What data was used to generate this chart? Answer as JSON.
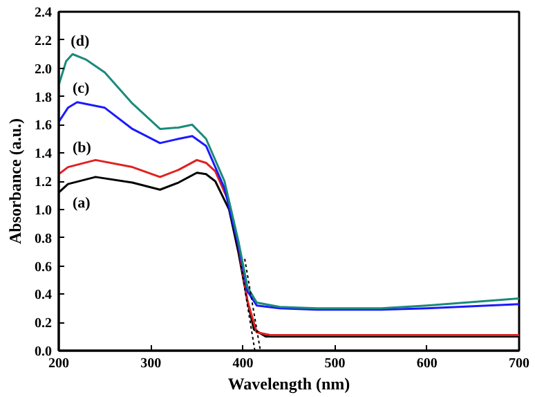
{
  "chart_data": {
    "type": "line",
    "xlabel": "Wavelength (nm)",
    "ylabel": "Absorbance (a.u.)",
    "xlim": [
      200,
      700
    ],
    "xticks": [
      200,
      300,
      400,
      500,
      600,
      700
    ],
    "ylim": [
      0,
      2.4
    ],
    "yticks": [
      {
        "value": 0,
        "label": "0.0"
      },
      0.2,
      0.4,
      0.6,
      0.8,
      {
        "value": 1,
        "label": "1.0"
      },
      1.2,
      1.4,
      1.6,
      1.8,
      {
        "value": 2,
        "label": "2.0"
      },
      2.2,
      2.4
    ],
    "grid": false,
    "line_style": "solid",
    "series": [
      {
        "name": "(a)",
        "color": "#000000",
        "x": [
          200,
          210,
          240,
          280,
          310,
          330,
          350,
          360,
          370,
          385,
          395,
          405,
          412,
          425,
          500,
          600,
          700
        ],
        "values": [
          1.12,
          1.18,
          1.23,
          1.19,
          1.14,
          1.19,
          1.26,
          1.25,
          1.2,
          1.0,
          0.7,
          0.35,
          0.15,
          0.1,
          0.1,
          0.1,
          0.1
        ]
      },
      {
        "name": "(b)",
        "color": "#e02020",
        "x": [
          200,
          210,
          240,
          280,
          310,
          330,
          350,
          360,
          370,
          385,
          395,
          405,
          415,
          430,
          500,
          600,
          700
        ],
        "values": [
          1.25,
          1.3,
          1.35,
          1.3,
          1.23,
          1.28,
          1.35,
          1.33,
          1.27,
          1.05,
          0.75,
          0.35,
          0.13,
          0.11,
          0.11,
          0.11,
          0.11
        ]
      },
      {
        "name": "(c)",
        "color": "#1a1aff",
        "x": [
          200,
          210,
          220,
          250,
          280,
          310,
          330,
          345,
          360,
          380,
          395,
          405,
          415,
          440,
          480,
          550,
          600,
          700
        ],
        "values": [
          1.62,
          1.72,
          1.76,
          1.72,
          1.57,
          1.47,
          1.5,
          1.52,
          1.45,
          1.15,
          0.75,
          0.42,
          0.32,
          0.3,
          0.29,
          0.29,
          0.3,
          0.33
        ]
      },
      {
        "name": "(d)",
        "color": "#1a8a7a",
        "x": [
          200,
          208,
          215,
          230,
          250,
          280,
          310,
          330,
          345,
          360,
          380,
          395,
          405,
          415,
          440,
          480,
          550,
          600,
          700
        ],
        "values": [
          1.88,
          2.05,
          2.1,
          2.06,
          1.97,
          1.75,
          1.57,
          1.58,
          1.6,
          1.5,
          1.2,
          0.78,
          0.45,
          0.34,
          0.31,
          0.3,
          0.3,
          0.32,
          0.37
        ]
      },
      {
        "color": "#000000",
        "line_style": "dotted",
        "x": [
          398,
          413
        ],
        "values": [
          0.6,
          0
        ]
      },
      {
        "color": "#000000",
        "line_style": "dotted",
        "x": [
          402,
          419
        ],
        "values": [
          0.65,
          0
        ]
      }
    ]
  }
}
